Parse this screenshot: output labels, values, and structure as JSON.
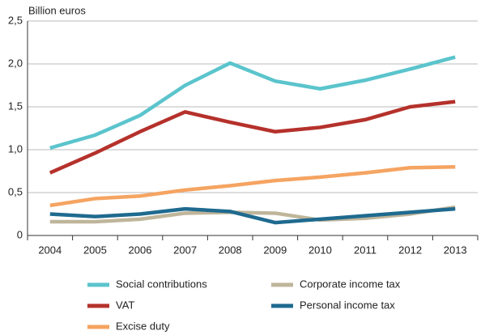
{
  "chart_data": {
    "type": "line",
    "y_label": "Billion euros",
    "categories": [
      "2004",
      "2005",
      "2006",
      "2007",
      "2008",
      "2009",
      "2010",
      "2011",
      "2012",
      "2013"
    ],
    "ylim": [
      0,
      2.5
    ],
    "yticks": [
      0,
      {
        "value": 0.5,
        "label": "0,5"
      },
      {
        "value": 1.0,
        "label": "1,0"
      },
      {
        "value": 1.5,
        "label": "1,5"
      },
      {
        "value": 2.0,
        "label": "2,0"
      },
      {
        "value": 2.5,
        "label": "2,5"
      }
    ],
    "grid": true,
    "series": [
      {
        "name": "Social contributions",
        "color": "#5bc4cc",
        "values": [
          1.02,
          1.17,
          1.4,
          1.75,
          2.01,
          1.8,
          1.71,
          1.81,
          1.94,
          2.08
        ]
      },
      {
        "name": "VAT",
        "color": "#b5312b",
        "values": [
          0.73,
          0.96,
          1.21,
          1.44,
          1.32,
          1.21,
          1.26,
          1.35,
          1.5,
          1.56
        ]
      },
      {
        "name": "Excise duty",
        "color": "#f5a462",
        "values": [
          0.35,
          0.43,
          0.46,
          0.53,
          0.58,
          0.64,
          0.68,
          0.73,
          0.79,
          0.8
        ]
      },
      {
        "name": "Corporate income tax",
        "color": "#bfb59a",
        "values": [
          0.16,
          0.16,
          0.19,
          0.26,
          0.27,
          0.26,
          0.18,
          0.2,
          0.25,
          0.33
        ]
      },
      {
        "name": "Personal income tax",
        "color": "#1f6a8f",
        "values": [
          0.25,
          0.22,
          0.25,
          0.31,
          0.28,
          0.15,
          0.19,
          0.23,
          0.27,
          0.31
        ]
      }
    ]
  }
}
